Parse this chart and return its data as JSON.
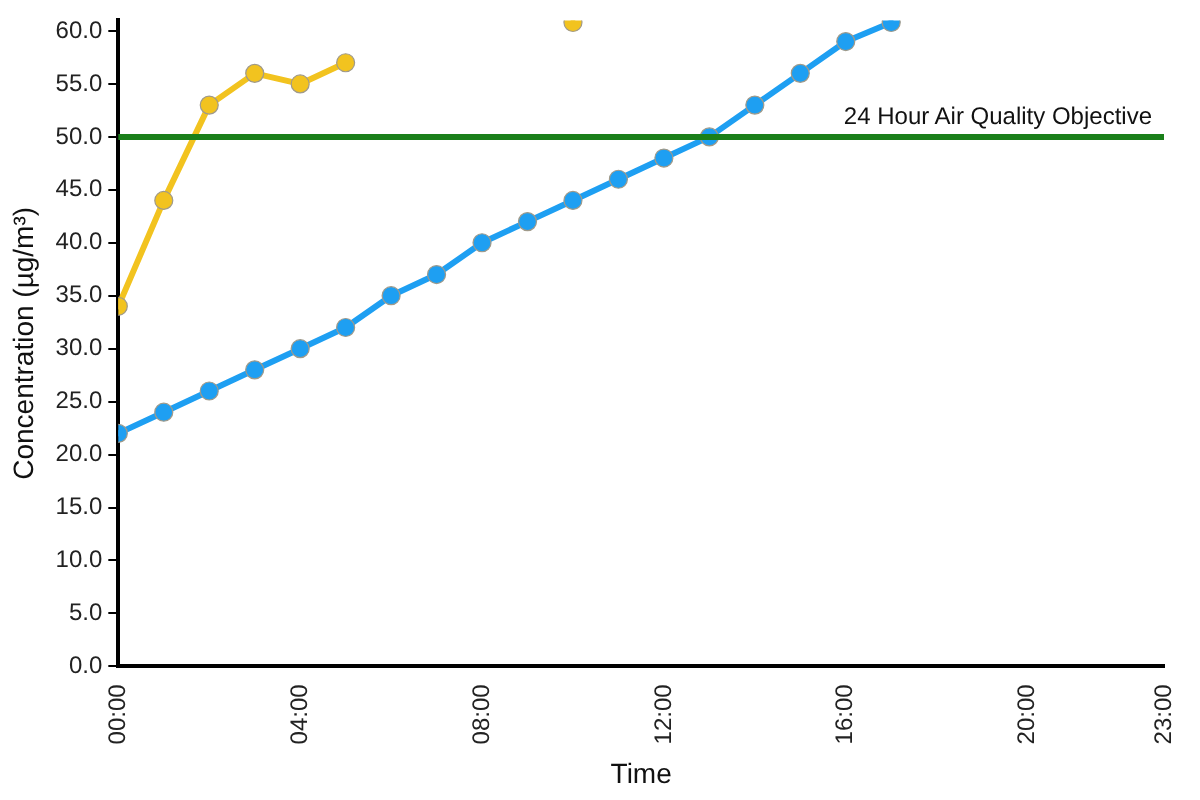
{
  "chart_data": {
    "type": "line",
    "xlabel": "Time",
    "ylabel": "Concentration (µg/m³)",
    "x": [
      0,
      1,
      2,
      3,
      4,
      5,
      6,
      7,
      8,
      9,
      10,
      11,
      12,
      13,
      14,
      15,
      16,
      17
    ],
    "series": [
      {
        "color": "#f2c31f",
        "values": [
          34,
          44,
          53,
          56,
          55,
          57,
          null,
          null,
          null,
          null,
          60.8,
          null,
          null,
          null,
          null,
          null,
          null,
          null
        ]
      },
      {
        "color": "#1e9ff2",
        "values": [
          22,
          24,
          26,
          28,
          30,
          32,
          35,
          37,
          40,
          42,
          44,
          46,
          48,
          50,
          53,
          56,
          59,
          60.8
        ]
      }
    ],
    "xlim": [
      0,
      23
    ],
    "xticks": [
      {
        "value": 0,
        "label": "00:00"
      },
      {
        "value": 4,
        "label": "04:00"
      },
      {
        "value": 8,
        "label": "08:00"
      },
      {
        "value": 12,
        "label": "12:00"
      },
      {
        "value": 16,
        "label": "16:00"
      },
      {
        "value": 20,
        "label": "20:00"
      },
      {
        "value": 23,
        "label": "23:00"
      }
    ],
    "ylim": [
      0,
      61
    ],
    "yticks": [
      {
        "value": 0,
        "label": "0.0"
      },
      {
        "value": 5,
        "label": "5.0"
      },
      {
        "value": 10,
        "label": "10.0"
      },
      {
        "value": 15,
        "label": "15.0"
      },
      {
        "value": 20,
        "label": "20.0"
      },
      {
        "value": 25,
        "label": "25.0"
      },
      {
        "value": 30,
        "label": "30.0"
      },
      {
        "value": 35,
        "label": "35.0"
      },
      {
        "value": 40,
        "label": "40.0"
      },
      {
        "value": 45,
        "label": "45.0"
      },
      {
        "value": 50,
        "label": "50.0"
      },
      {
        "value": 55,
        "label": "55.0"
      },
      {
        "value": 60,
        "label": "60.0"
      }
    ],
    "ref_lines": [
      {
        "axis": "y",
        "value": 50,
        "label": "24 Hour Air Quality Objective",
        "color": "#1a7f1a"
      }
    ],
    "grid": false,
    "legend": false,
    "marker": "circle",
    "line_style": "solid"
  }
}
